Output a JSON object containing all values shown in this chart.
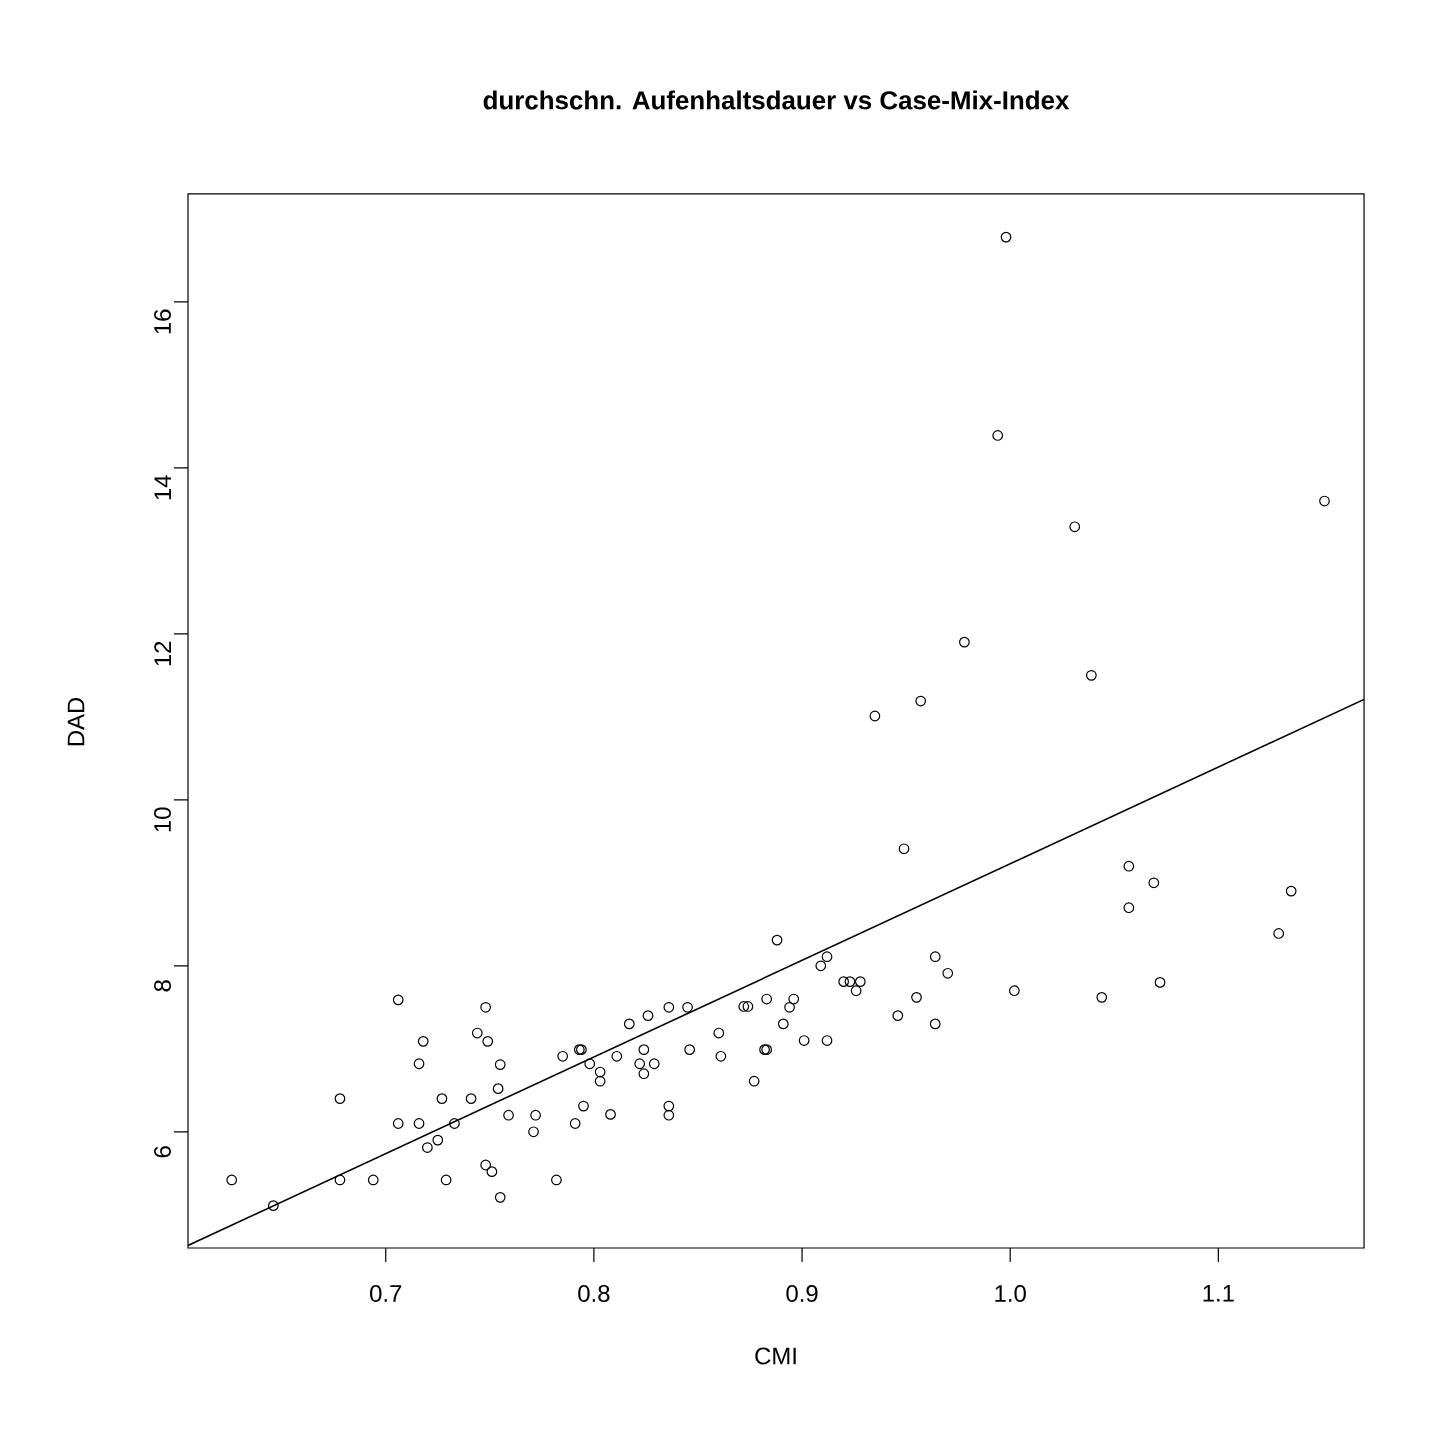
{
  "chart_data": {
    "type": "scatter",
    "title": "durchschn. Aufenhaltsdauer vs Case-Mix-Index",
    "xlabel": "CMI",
    "ylabel": "DAD",
    "xlim": [
      0.605,
      1.17
    ],
    "ylim": [
      4.6,
      17.3
    ],
    "xticks": [
      0.7,
      0.8,
      0.9,
      {
        "value": 1,
        "label": "1.0"
      },
      1.1
    ],
    "yticks": [
      6,
      8,
      10,
      12,
      14,
      16
    ],
    "series": [
      {
        "color": "#000000",
        "marker": "circle",
        "x": [
          0.998,
          0.994,
          1.151,
          1.031,
          0.978,
          1.039,
          0.957,
          0.935,
          0.949,
          1.057,
          1.069,
          1.135,
          1.057,
          1.129,
          0.964,
          0.97,
          1.072,
          1.002,
          1.044,
          0.955,
          0.888,
          0.912,
          0.909,
          0.92,
          0.923,
          0.928,
          0.926,
          0.946,
          0.964,
          0.883,
          0.896,
          0.894,
          0.872,
          0.874,
          0.891,
          0.86,
          0.845,
          0.836,
          0.826,
          0.817,
          0.824,
          0.822,
          0.829,
          0.824,
          0.811,
          0.846,
          0.861,
          0.901,
          0.912,
          0.882,
          0.883,
          0.877,
          0.794,
          0.798,
          0.803,
          0.803,
          0.795,
          0.808,
          0.836,
          0.836,
          0.626,
          0.646,
          0.678,
          0.678,
          0.694,
          0.706,
          0.706,
          0.716,
          0.716,
          0.718,
          0.72,
          0.725,
          0.733,
          0.727,
          0.729,
          0.741,
          0.744,
          0.748,
          0.749,
          0.755,
          0.754,
          0.759,
          0.748,
          0.751,
          0.755,
          0.772,
          0.771,
          0.782,
          0.785,
          0.793,
          0.791
        ],
        "values": [
          16.78,
          14.39,
          13.6,
          13.29,
          11.9,
          11.5,
          11.19,
          11.01,
          9.41,
          9.2,
          9.0,
          8.9,
          8.7,
          8.39,
          8.11,
          7.91,
          7.8,
          7.7,
          7.62,
          7.62,
          8.31,
          8.11,
          8.0,
          7.81,
          7.81,
          7.81,
          7.7,
          7.4,
          7.3,
          7.6,
          7.6,
          7.5,
          7.51,
          7.51,
          7.3,
          7.19,
          7.5,
          7.5,
          7.4,
          7.3,
          6.99,
          6.82,
          6.82,
          6.7,
          6.91,
          6.99,
          6.91,
          7.1,
          7.1,
          6.99,
          6.99,
          6.61,
          6.99,
          6.82,
          6.72,
          6.61,
          6.31,
          6.21,
          6.31,
          6.2,
          5.42,
          5.11,
          6.4,
          5.42,
          5.42,
          7.59,
          6.1,
          6.1,
          6.82,
          7.09,
          5.81,
          5.9,
          6.1,
          6.4,
          5.42,
          6.4,
          7.19,
          7.5,
          7.09,
          6.81,
          6.52,
          6.2,
          5.6,
          5.52,
          5.21,
          6.2,
          6.0,
          5.42,
          6.91,
          6.99,
          6.1
        ]
      },
      {
        "type": "line",
        "color": "#000000",
        "marker": "none",
        "line_style": "solid",
        "x": [
          0.605,
          1.17
        ],
        "values": [
          4.63,
          11.21
        ]
      }
    ]
  }
}
